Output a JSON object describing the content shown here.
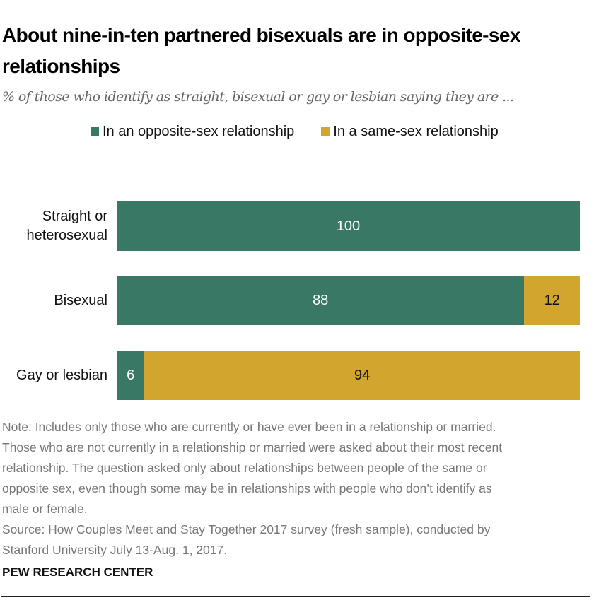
{
  "title": "About nine-in-ten partnered bisexuals are in opposite-sex relationships",
  "subtitle": "% of those who identify as straight, bisexual or gay or lesbian saying they are ...",
  "chart_data": {
    "type": "bar",
    "orientation": "horizontal",
    "stacked": true,
    "categories": [
      "Straight or heterosexual",
      "Bisexual",
      "Gay or lesbian"
    ],
    "series": [
      {
        "name": "In an opposite-sex relationship",
        "color": "#3a7866",
        "label_color": "#ffffff",
        "values": [
          100,
          88,
          6
        ]
      },
      {
        "name": "In a same-sex relationship",
        "color": "#d2a52f",
        "label_color": "#111111",
        "values": [
          0,
          12,
          94
        ]
      }
    ],
    "xlim": [
      0,
      100
    ],
    "legend": "top"
  },
  "notes": [
    "Note: Includes only those who are currently or have ever been in a relationship or married.",
    "Those who are not currently in a relationship or married were asked about their most recent",
    "relationship. The question asked only about relationships between people of the same or",
    "opposite sex, even though some may be in relationships with people who don’t identify as",
    "male or female.",
    "Source: How Couples Meet and Stay Together 2017 survey (fresh sample), conducted by",
    "Stanford University July 13-Aug. 1, 2017."
  ],
  "brand": "PEW RESEARCH CENTER"
}
